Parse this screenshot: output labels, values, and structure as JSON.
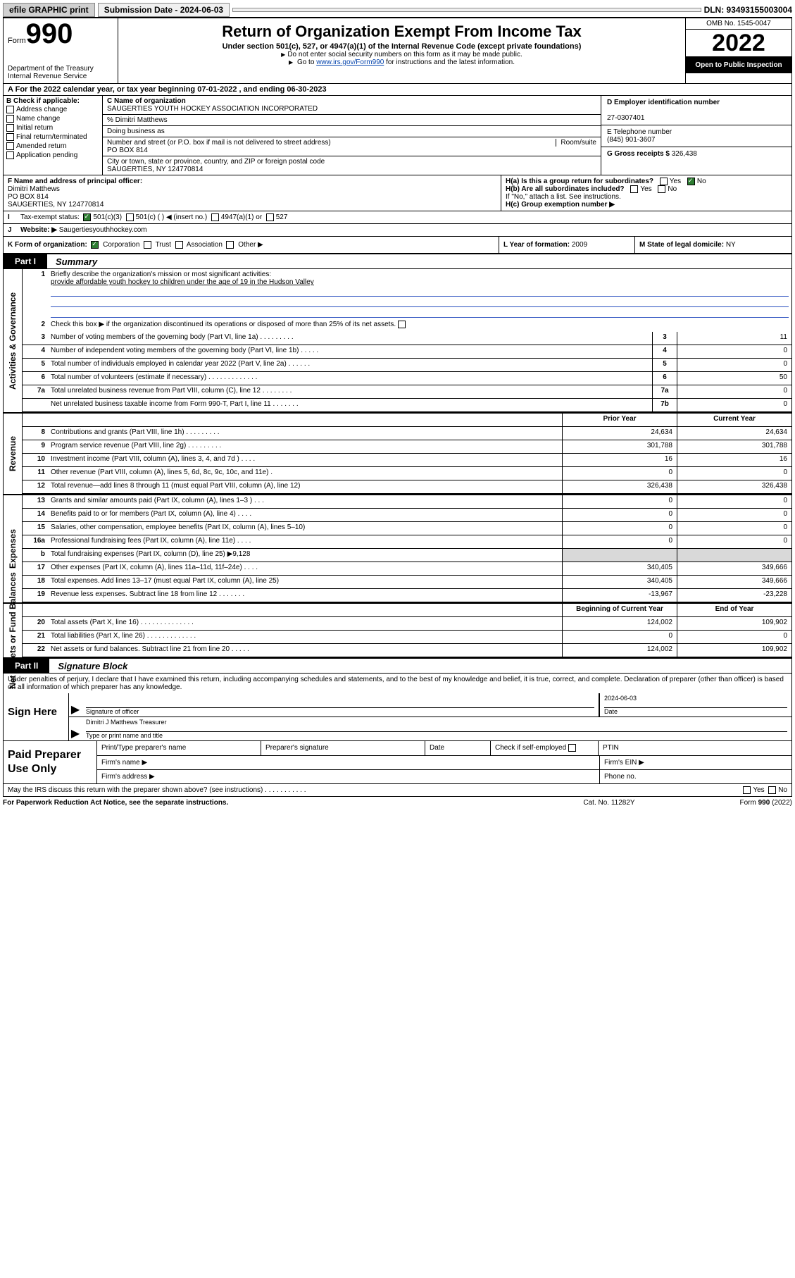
{
  "topbar": {
    "efile": "efile GRAPHIC print",
    "subdate_lbl": "Submission Date - 2024-06-03",
    "dln": "DLN: 93493155003004"
  },
  "header": {
    "form_word": "Form",
    "form_num": "990",
    "dept": "Department of the Treasury",
    "irs": "Internal Revenue Service",
    "title": "Return of Organization Exempt From Income Tax",
    "sub": "Under section 501(c), 527, or 4947(a)(1) of the Internal Revenue Code (except private foundations)",
    "note1": "Do not enter social security numbers on this form as it may be made public.",
    "note2_pre": "Go to ",
    "note2_link": "www.irs.gov/Form990",
    "note2_post": " for instructions and the latest information.",
    "omb": "OMB No. 1545-0047",
    "year": "2022",
    "open": "Open to Public Inspection"
  },
  "rowA": "For the 2022 calendar year, or tax year beginning 07-01-2022    , and ending 06-30-2023",
  "B": {
    "title": "B Check if applicable:",
    "opts": [
      "Address change",
      "Name change",
      "Initial return",
      "Final return/terminated",
      "Amended return",
      "Application pending"
    ]
  },
  "C": {
    "name_lbl": "C Name of organization",
    "name": "SAUGERTIES YOUTH HOCKEY ASSOCIATION INCORPORATED",
    "care_lbl": "% Dimitri Matthews",
    "dba_lbl": "Doing business as",
    "street_lbl": "Number and street (or P.O. box if mail is not delivered to street address)",
    "room_lbl": "Room/suite",
    "street": "PO BOX 814",
    "city_lbl": "City or town, state or province, country, and ZIP or foreign postal code",
    "city": "SAUGERTIES, NY  124770814"
  },
  "D": {
    "lbl": "D Employer identification number",
    "val": "27-0307401"
  },
  "E": {
    "lbl": "E Telephone number",
    "val": "(845) 901-3607"
  },
  "G": {
    "lbl": "G Gross receipts $",
    "val": "326,438"
  },
  "F": {
    "lbl": "F  Name and address of principal officer:",
    "name": "Dimitri Matthews",
    "street": "PO BOX 814",
    "city": "SAUGERTIES, NY  124770814"
  },
  "H": {
    "a": "H(a)  Is this a group return for subordinates?",
    "b": "H(b)  Are all subordinates included?",
    "b_note": "If \"No,\" attach a list. See instructions.",
    "c": "H(c)  Group exemption number ▶"
  },
  "I": {
    "lbl": "Tax-exempt status:",
    "opts": [
      "501(c)(3)",
      "501(c) (   ) ◀ (insert no.)",
      "4947(a)(1) or",
      "527"
    ]
  },
  "J": {
    "lbl": "Website: ▶",
    "val": "Saugertiesyouthhockey.com"
  },
  "K": {
    "lbl": "K Form of organization:",
    "opts": [
      "Corporation",
      "Trust",
      "Association",
      "Other ▶"
    ]
  },
  "L": {
    "lbl": "L Year of formation:",
    "val": "2009"
  },
  "M": {
    "lbl": "M State of legal domicile:",
    "val": "NY"
  },
  "part1": {
    "tag": "Part I",
    "title": "Summary"
  },
  "part2": {
    "tag": "Part II",
    "title": "Signature Block"
  },
  "sides": {
    "gov": "Activities & Governance",
    "rev": "Revenue",
    "exp": "Expenses",
    "net": "Net Assets or Fund Balances"
  },
  "summary": {
    "l1": "Briefly describe the organization's mission or most significant activities:",
    "mission": "provide affordable youth hockey to children under the age of 19 in the Hudson Valley",
    "l2": "Check this box ▶         if the organization discontinued its operations or disposed of more than 25% of its net assets.",
    "rows_gov": [
      {
        "n": "3",
        "d": "Number of voting members of the governing body (Part VI, line 1a)   .    .    .    .    .    .    .    .    .",
        "box": "3",
        "v": "11"
      },
      {
        "n": "4",
        "d": "Number of independent voting members of the governing body (Part VI, line 1b)   .    .    .    .    .",
        "box": "4",
        "v": "0"
      },
      {
        "n": "5",
        "d": "Total number of individuals employed in calendar year 2022 (Part V, line 2a)   .    .    .    .    .    .",
        "box": "5",
        "v": "0"
      },
      {
        "n": "6",
        "d": "Total number of volunteers (estimate if necessary)   .    .    .    .    .    .    .    .    .    .    .    .    .",
        "box": "6",
        "v": "50"
      },
      {
        "n": "7a",
        "d": "Total unrelated business revenue from Part VIII, column (C), line 12   .    .    .    .    .    .    .    .",
        "box": "7a",
        "v": "0"
      },
      {
        "n": "",
        "d": "Net unrelated business taxable income from Form 990-T, Part I, line 11   .    .    .    .    .    .    .",
        "box": "7b",
        "v": "0"
      }
    ],
    "hdr_prior": "Prior Year",
    "hdr_curr": "Current Year",
    "rows_rev": [
      {
        "n": "8",
        "d": "Contributions and grants (Part VIII, line 1h)   .    .    .    .    .    .    .    .    .",
        "p": "24,634",
        "c": "24,634"
      },
      {
        "n": "9",
        "d": "Program service revenue (Part VIII, line 2g)   .    .    .    .    .    .    .    .    .",
        "p": "301,788",
        "c": "301,788"
      },
      {
        "n": "10",
        "d": "Investment income (Part VIII, column (A), lines 3, 4, and 7d )   .    .    .    .",
        "p": "16",
        "c": "16"
      },
      {
        "n": "11",
        "d": "Other revenue (Part VIII, column (A), lines 5, 6d, 8c, 9c, 10c, and 11e)   .",
        "p": "0",
        "c": "0"
      },
      {
        "n": "12",
        "d": "Total revenue—add lines 8 through 11 (must equal Part VIII, column (A), line 12)",
        "p": "326,438",
        "c": "326,438"
      }
    ],
    "rows_exp": [
      {
        "n": "13",
        "d": "Grants and similar amounts paid (Part IX, column (A), lines 1–3 )   .    .    .",
        "p": "0",
        "c": "0"
      },
      {
        "n": "14",
        "d": "Benefits paid to or for members (Part IX, column (A), line 4)   .    .    .    .",
        "p": "0",
        "c": "0"
      },
      {
        "n": "15",
        "d": "Salaries, other compensation, employee benefits (Part IX, column (A), lines 5–10)",
        "p": "0",
        "c": "0"
      },
      {
        "n": "16a",
        "d": "Professional fundraising fees (Part IX, column (A), line 11e)   .    .    .    .",
        "p": "0",
        "c": "0"
      },
      {
        "n": "b",
        "d": "Total fundraising expenses (Part IX, column (D), line 25) ▶9,128",
        "p": "",
        "c": "",
        "gray": true
      },
      {
        "n": "17",
        "d": "Other expenses (Part IX, column (A), lines 11a–11d, 11f–24e)   .    .    .    .",
        "p": "340,405",
        "c": "349,666"
      },
      {
        "n": "18",
        "d": "Total expenses. Add lines 13–17 (must equal Part IX, column (A), line 25)",
        "p": "340,405",
        "c": "349,666"
      },
      {
        "n": "19",
        "d": "Revenue less expenses. Subtract line 18 from line 12   .    .    .    .    .    .    .",
        "p": "-13,967",
        "c": "-23,228"
      }
    ],
    "hdr_beg": "Beginning of Current Year",
    "hdr_end": "End of Year",
    "rows_net": [
      {
        "n": "20",
        "d": "Total assets (Part X, line 16)   .    .    .    .    .    .    .    .    .    .    .    .    .    .",
        "p": "124,002",
        "c": "109,902"
      },
      {
        "n": "21",
        "d": "Total liabilities (Part X, line 26)   .    .    .    .    .    .    .    .    .    .    .    .    .",
        "p": "0",
        "c": "0"
      },
      {
        "n": "22",
        "d": "Net assets or fund balances. Subtract line 21 from line 20   .    .    .    .    .",
        "p": "124,002",
        "c": "109,902"
      }
    ]
  },
  "sig": {
    "intro": "Under penalties of perjury, I declare that I have examined this return, including accompanying schedules and statements, and to the best of my knowledge and belief, it is true, correct, and complete. Declaration of preparer (other than officer) is based on all information of which preparer has any knowledge.",
    "sign_here": "Sign Here",
    "sig_officer": "Signature of officer",
    "date_lbl": "Date",
    "date": "2024-06-03",
    "name": "Dimitri J Matthews  Treasurer",
    "name_lbl": "Type or print name and title"
  },
  "paid": {
    "lbl": "Paid Preparer Use Only",
    "h": [
      "Print/Type preparer's name",
      "Preparer's signature",
      "Date",
      "",
      "PTIN"
    ],
    "check": "Check          if self-employed",
    "firm_name": "Firm's name    ▶",
    "firm_ein": "Firm's EIN ▶",
    "firm_addr": "Firm's address ▶",
    "phone": "Phone no."
  },
  "discuss": "May the IRS discuss this return with the preparer shown above? (see instructions)   .    .    .    .    .    .    .    .    .    .    .",
  "footer": {
    "l": "For Paperwork Reduction Act Notice, see the separate instructions.",
    "m": "Cat. No. 11282Y",
    "r": "Form 990 (2022)"
  }
}
